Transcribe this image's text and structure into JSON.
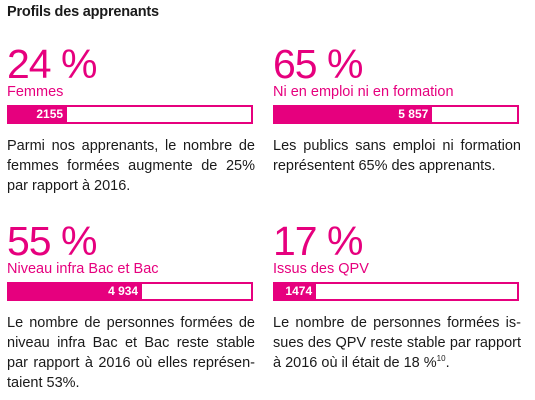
{
  "title": "Profils des apprenants",
  "colors": {
    "accent": "#e6007e",
    "text": "#1a1a1a"
  },
  "stats": [
    {
      "percent": "24 %",
      "label": "Femmes",
      "bar_value": "2155",
      "bar_fraction": 0.24,
      "text_lines": [
        "Parmi nos apprenants, le nombre de",
        "femmes formées augmente de 25%",
        "par rapport à 2016."
      ]
    },
    {
      "percent": "65 %",
      "label": "Ni en emploi ni en formation",
      "bar_value": "5 857",
      "bar_fraction": 0.65,
      "text_lines": [
        "Les publics sans emploi ni formation",
        "représentent 65% des apprenants."
      ]
    },
    {
      "percent": "55 %",
      "label": "Niveau infra Bac et Bac",
      "bar_value": "4 934",
      "bar_fraction": 0.55,
      "text_lines": [
        "Le nombre de personnes formées de",
        "niveau infra Bac et Bac reste stable",
        "par rapport à 2016 où elles représen-",
        "taient 53%."
      ]
    },
    {
      "percent": "17 %",
      "label": "Issus des QPV",
      "bar_value": "1474",
      "bar_fraction": 0.17,
      "text_lines": [
        "Le nombre de personnes formées is-",
        "sues des QPV reste stable par rapport",
        "à 2016 où il était de 18 %"
      ],
      "footnote": "10"
    }
  ]
}
